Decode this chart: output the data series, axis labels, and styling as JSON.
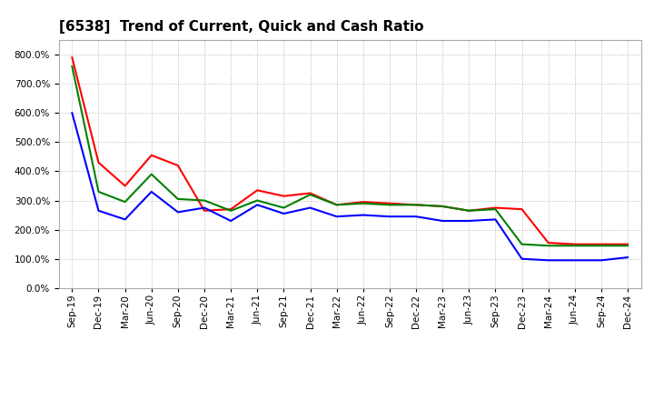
{
  "title": "[6538]  Trend of Current, Quick and Cash Ratio",
  "labels": [
    "Sep-19",
    "Dec-19",
    "Mar-20",
    "Jun-20",
    "Sep-20",
    "Dec-20",
    "Mar-21",
    "Jun-21",
    "Sep-21",
    "Dec-21",
    "Mar-22",
    "Jun-22",
    "Sep-22",
    "Dec-22",
    "Mar-23",
    "Jun-23",
    "Sep-23",
    "Dec-23",
    "Mar-24",
    "Jun-24",
    "Sep-24",
    "Dec-24"
  ],
  "current_ratio": [
    790,
    430,
    350,
    455,
    420,
    265,
    270,
    335,
    315,
    325,
    285,
    295,
    290,
    285,
    280,
    265,
    275,
    270,
    155,
    150,
    150,
    150
  ],
  "quick_ratio": [
    760,
    330,
    295,
    390,
    305,
    300,
    265,
    300,
    275,
    320,
    285,
    290,
    285,
    285,
    280,
    265,
    270,
    150,
    145,
    145,
    145,
    145
  ],
  "cash_ratio": [
    600,
    265,
    235,
    330,
    260,
    275,
    230,
    285,
    255,
    275,
    245,
    250,
    245,
    245,
    230,
    230,
    235,
    100,
    95,
    95,
    95,
    105
  ],
  "current_color": "#FF0000",
  "quick_color": "#008000",
  "cash_color": "#0000FF",
  "background_color": "#FFFFFF",
  "grid_color": "#AAAAAA",
  "ylim": [
    0,
    850
  ],
  "yticks": [
    0,
    100,
    200,
    300,
    400,
    500,
    600,
    700,
    800
  ],
  "line_width": 1.5,
  "title_fontsize": 11,
  "tick_fontsize": 7.5,
  "legend_fontsize": 9
}
